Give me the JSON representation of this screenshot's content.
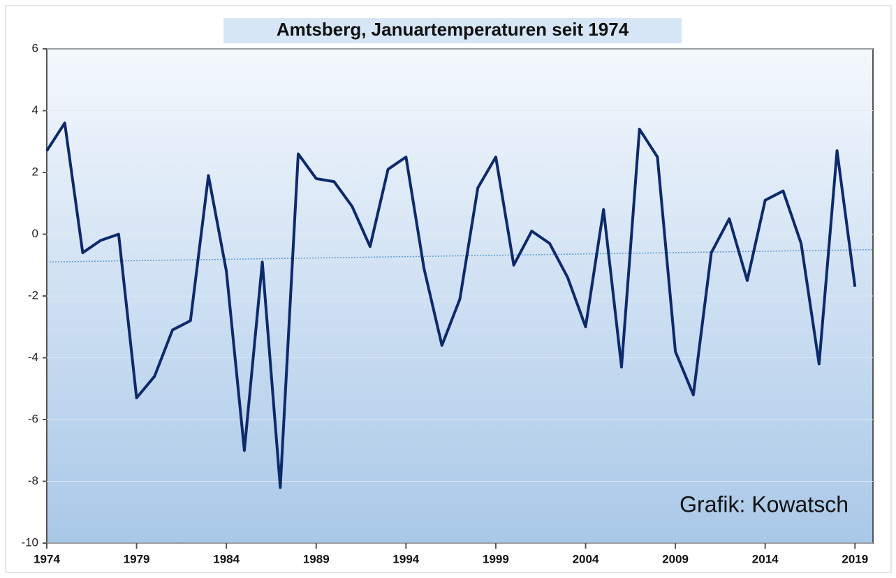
{
  "chart_data": {
    "type": "line",
    "title": "Amtsberg, Januartemperaturen seit 1974",
    "annotation": "Grafik: Kowatsch",
    "x": [
      1974,
      1975,
      1976,
      1977,
      1978,
      1979,
      1980,
      1981,
      1982,
      1983,
      1984,
      1985,
      1986,
      1987,
      1988,
      1989,
      1990,
      1991,
      1992,
      1993,
      1994,
      1995,
      1996,
      1997,
      1998,
      1999,
      2000,
      2001,
      2002,
      2003,
      2004,
      2005,
      2006,
      2007,
      2008,
      2009,
      2010,
      2011,
      2012,
      2013,
      2014,
      2015,
      2016,
      2017,
      2018,
      2019
    ],
    "series": [
      {
        "color": "#0d2a6b",
        "values": [
          2.7,
          3.6,
          -0.6,
          -0.2,
          0.0,
          -5.3,
          -4.6,
          -3.1,
          -2.8,
          1.9,
          -1.2,
          -7.0,
          -0.9,
          -8.2,
          2.6,
          1.8,
          1.7,
          0.9,
          -0.4,
          2.1,
          2.5,
          -1.1,
          -3.6,
          -2.1,
          1.5,
          2.5,
          -1.0,
          0.1,
          -0.3,
          -1.4,
          -3.0,
          0.8,
          -4.3,
          3.4,
          2.5,
          -3.8,
          -5.2,
          -0.6,
          0.5,
          -1.5,
          1.1,
          1.4,
          -0.3,
          -4.2,
          2.7,
          -1.7
        ]
      }
    ],
    "trend": {
      "x": [
        1974,
        2020
      ],
      "values": [
        -0.9,
        -0.5
      ],
      "color": "#5b9bd5"
    },
    "xlim": [
      1974,
      2020
    ],
    "xticks": [
      1974,
      1979,
      1984,
      1989,
      1994,
      1999,
      2004,
      2009,
      2014,
      2019
    ],
    "ylim": [
      -10,
      6
    ],
    "yticks": [
      -10,
      -8,
      -6,
      -4,
      -2,
      0,
      2,
      4,
      6
    ],
    "grid": true
  }
}
